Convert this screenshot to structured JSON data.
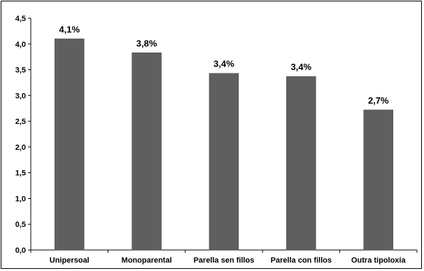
{
  "chart_data": {
    "type": "bar",
    "categories": [
      "Unipersoal",
      "Monoparental",
      "Parella sen fillos",
      "Parella con fillos",
      "Outra tipoloxía"
    ],
    "values": [
      4.1,
      3.83,
      3.43,
      3.37,
      2.72
    ],
    "data_labels": [
      "4,1%",
      "3,8%",
      "3,4%",
      "3,4%",
      "2,7%"
    ],
    "yticks": [
      "0,0",
      "0,5",
      "1,0",
      "1,5",
      "2,0",
      "2,5",
      "3,0",
      "3,5",
      "4,0",
      "4,5"
    ],
    "ylim": [
      0,
      4.5
    ],
    "title": "",
    "xlabel": "",
    "ylabel": "",
    "grid": false,
    "legend": "none",
    "colors": {
      "bar": "#5f5f5f",
      "axis": "#000000",
      "frame": "#000000"
    }
  }
}
